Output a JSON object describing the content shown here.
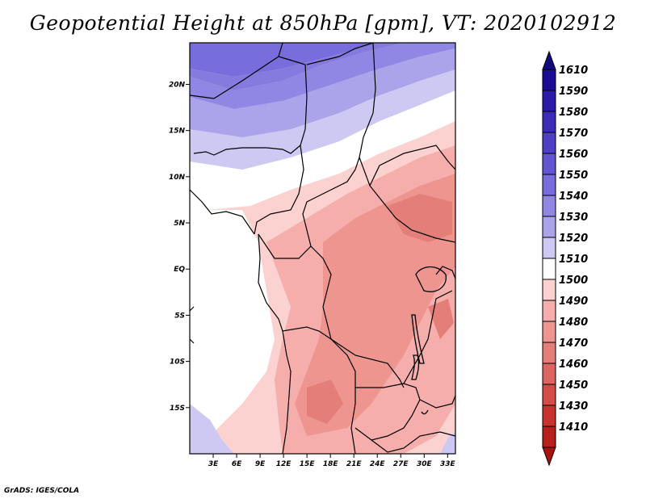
{
  "title": "Geopotential Height at 850hPa [gpm], VT: 2020102912",
  "credit": "GrADS: IGES/COLA",
  "map": {
    "region": "Central Africa",
    "lat_range": [
      -20,
      24.5
    ],
    "lon_range": [
      0,
      34
    ],
    "lat_ticks": [
      {
        "value": 20,
        "label": "20N"
      },
      {
        "value": 15,
        "label": "15N"
      },
      {
        "value": 10,
        "label": "10N"
      },
      {
        "value": 5,
        "label": "5N"
      },
      {
        "value": 0,
        "label": "EQ"
      },
      {
        "value": -5,
        "label": "5S"
      },
      {
        "value": -10,
        "label": "10S"
      },
      {
        "value": -15,
        "label": "15S"
      }
    ],
    "lon_ticks": [
      {
        "value": 3,
        "label": "3E"
      },
      {
        "value": 6,
        "label": "6E"
      },
      {
        "value": 9,
        "label": "9E"
      },
      {
        "value": 12,
        "label": "12E"
      },
      {
        "value": 15,
        "label": "15E"
      },
      {
        "value": 18,
        "label": "18E"
      },
      {
        "value": 21,
        "label": "21E"
      },
      {
        "value": 24,
        "label": "24E"
      },
      {
        "value": 27,
        "label": "27E"
      },
      {
        "value": 30,
        "label": "30E"
      },
      {
        "value": 33,
        "label": "33E"
      }
    ]
  },
  "colorbar": {
    "levels": [
      {
        "label": "1610",
        "color": "#1a0c96"
      },
      {
        "label": "1590",
        "color": "#2a1aa8"
      },
      {
        "label": "1580",
        "color": "#3b2cb8"
      },
      {
        "label": "1570",
        "color": "#4d40c6"
      },
      {
        "label": "1560",
        "color": "#6255d2"
      },
      {
        "label": "1550",
        "color": "#786ddc"
      },
      {
        "label": "1540",
        "color": "#9086e4"
      },
      {
        "label": "1530",
        "color": "#aba4ea"
      },
      {
        "label": "1520",
        "color": "#cdc9f2"
      },
      {
        "label": "1510",
        "color": "#ffffff"
      },
      {
        "label": "1500",
        "color": "#fcd2d0"
      },
      {
        "label": "1490",
        "color": "#f5aeab"
      },
      {
        "label": "1480",
        "color": "#ee9590"
      },
      {
        "label": "1470",
        "color": "#e47e78"
      },
      {
        "label": "1460",
        "color": "#dc6660"
      },
      {
        "label": "1450",
        "color": "#d44c46"
      },
      {
        "label": "1430",
        "color": "#c7342e"
      },
      {
        "label": "1410",
        "color": "#b8201b"
      }
    ],
    "top_cap_color": "#140a80",
    "bottom_cap_color": "#a8140f"
  }
}
